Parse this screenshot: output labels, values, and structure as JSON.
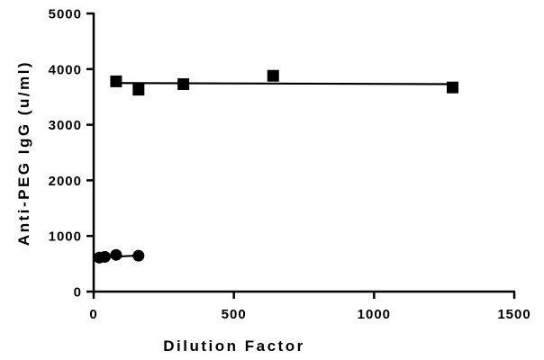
{
  "chart_data": {
    "type": "scatter",
    "title": "",
    "xlabel": "Dilution Factor",
    "ylabel": "Anti-PEG IgG (u/ml)",
    "xlim": [
      0,
      1500
    ],
    "ylim": [
      0,
      5000
    ],
    "x_ticks": [
      0,
      500,
      1000,
      1500
    ],
    "y_ticks": [
      0,
      1000,
      2000,
      3000,
      4000,
      5000
    ],
    "grid": false,
    "legend": "none",
    "series": [
      {
        "marker": "square",
        "color": "#000000",
        "x": [
          80,
          160,
          320,
          640,
          1280
        ],
        "y": [
          3780,
          3630,
          3730,
          3880,
          3670
        ],
        "fit_line": {
          "x": [
            80,
            1280
          ],
          "y": [
            3750,
            3730
          ]
        }
      },
      {
        "marker": "circle",
        "color": "#000000",
        "x": [
          20,
          40,
          80,
          160
        ],
        "y": [
          610,
          625,
          660,
          645
        ],
        "fit_line": {
          "x": [
            20,
            160
          ],
          "y": [
            615,
            648
          ]
        }
      }
    ]
  }
}
